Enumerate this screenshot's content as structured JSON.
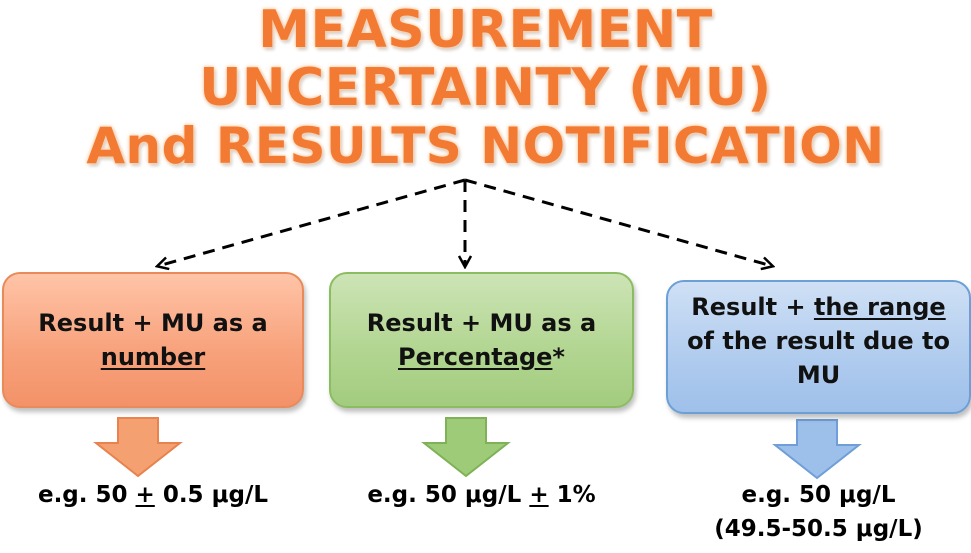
{
  "title": {
    "line1": "MEASUREMENT",
    "line2": "UNCERTAINTY (MU)",
    "line3": "And RESULTS NOTIFICATION"
  },
  "boxes": [
    {
      "line1": "Result + MU as a",
      "line2": "number",
      "color": "#f7a17a"
    },
    {
      "line1": "Result + MU as a",
      "line2": "Percentage",
      "suffix": "*",
      "color": "#b1d590"
    },
    {
      "prefix": "Result + ",
      "underlined": "the range",
      "line2": "of the result due to",
      "line3": "MU",
      "color": "#afcbee"
    }
  ],
  "examples": [
    {
      "before": "e.g. 50 ",
      "pm": "+",
      "after": " 0.5 μg/L"
    },
    {
      "before": "e.g. 50 μg/L ",
      "pm": "+",
      "after": " 1%"
    },
    {
      "line1": "e.g. 50 μg/L",
      "line2": "(49.5-50.5 μg/L)"
    }
  ],
  "colors": {
    "title": "#f27a33",
    "arrow_orange": "#f4a070",
    "arrow_green": "#9ecb78",
    "arrow_blue": "#9cc0ea",
    "connector": "#000000"
  }
}
